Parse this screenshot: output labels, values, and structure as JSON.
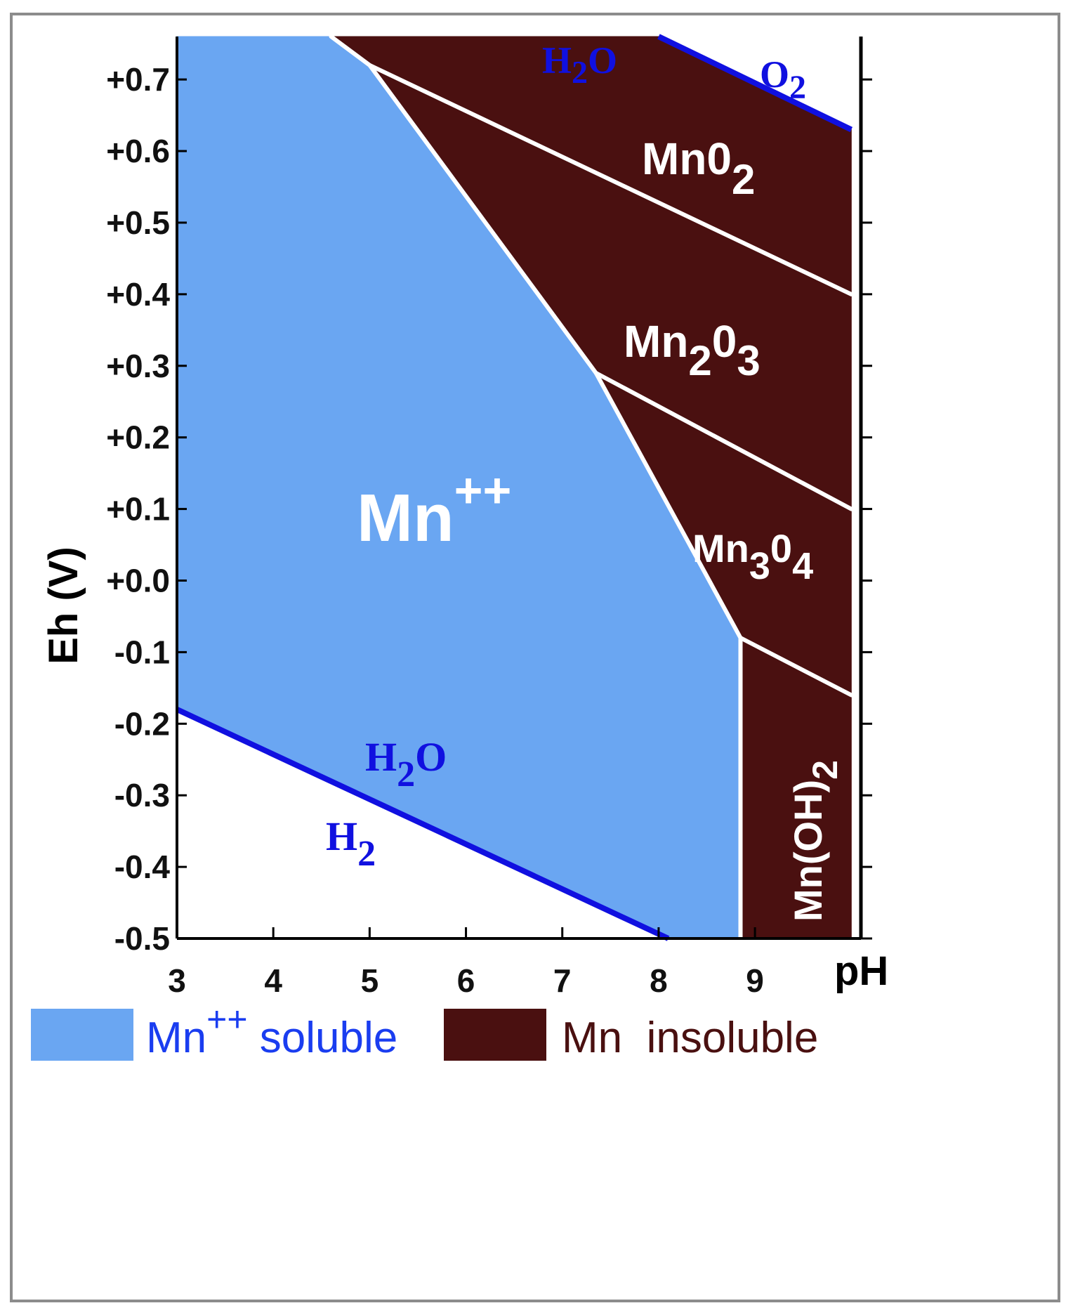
{
  "chart_data": {
    "type": "area",
    "xlabel": "pH",
    "ylabel": "Eh (V)",
    "xlim": [
      3,
      10.1
    ],
    "ylim": [
      -0.5,
      0.76
    ],
    "x_ticks": [
      "3",
      "4",
      "5",
      "6",
      "7",
      "8",
      "9"
    ],
    "y_ticks": [
      "+0.7",
      "+0.6",
      "+0.5",
      "+0.4",
      "+0.3",
      "+0.2",
      "+0.1",
      "+0.0",
      "-0.1",
      "-0.2",
      "-0.3",
      "-0.4",
      "-0.5"
    ],
    "colors": {
      "soluble": "#6aa6f2",
      "insoluble": "#4a1010",
      "water_line": "#1010e0",
      "boundary": "#ffffff"
    },
    "regions": [
      {
        "name": "Mn++",
        "label": "Mn",
        "label_sup": "++",
        "state": "soluble",
        "points": [
          [
            3,
            0.76
          ],
          [
            4.6,
            0.76
          ],
          [
            5.0,
            0.72
          ],
          [
            7.35,
            0.29
          ],
          [
            8.85,
            -0.08
          ],
          [
            8.85,
            -0.5
          ],
          [
            8.1,
            -0.5
          ],
          [
            3,
            -0.18
          ]
        ]
      },
      {
        "name": "MnO2",
        "label": "Mn0",
        "label_sub": "2",
        "state": "insoluble",
        "points": [
          [
            4.6,
            0.76
          ],
          [
            8.0,
            0.76
          ],
          [
            10.0,
            0.63
          ],
          [
            10.0,
            0.4
          ],
          [
            5.0,
            0.72
          ]
        ]
      },
      {
        "name": "Mn2O3",
        "label_parts": [
          "Mn",
          "2",
          "0",
          "3"
        ],
        "state": "insoluble",
        "points": [
          [
            5.0,
            0.72
          ],
          [
            10.0,
            0.4
          ],
          [
            10.0,
            0.1
          ],
          [
            7.35,
            0.29
          ]
        ]
      },
      {
        "name": "Mn3O4",
        "label_parts": [
          "Mn",
          "3",
          "0",
          "4"
        ],
        "state": "insoluble",
        "points": [
          [
            7.35,
            0.29
          ],
          [
            10.0,
            0.1
          ],
          [
            10.0,
            -0.16
          ],
          [
            8.85,
            -0.08
          ]
        ]
      },
      {
        "name": "Mn(OH)2",
        "label": "Mn(OH)",
        "label_sub": "2",
        "state": "insoluble",
        "points": [
          [
            8.85,
            -0.08
          ],
          [
            10.0,
            -0.16
          ],
          [
            10.0,
            -0.5
          ],
          [
            8.85,
            -0.5
          ]
        ]
      }
    ],
    "boundaries": [
      [
        [
          4.6,
          0.76
        ],
        [
          5.0,
          0.72
        ],
        [
          7.35,
          0.29
        ],
        [
          8.85,
          -0.08
        ],
        [
          8.85,
          -0.5
        ]
      ],
      [
        [
          5.0,
          0.72
        ],
        [
          10.0,
          0.4
        ]
      ],
      [
        [
          7.35,
          0.29
        ],
        [
          10.0,
          0.1
        ]
      ],
      [
        [
          8.85,
          -0.08
        ],
        [
          10.0,
          -0.16
        ]
      ]
    ],
    "water_stability": {
      "upper": {
        "points": [
          [
            8.0,
            0.76
          ],
          [
            10.0,
            0.63
          ]
        ],
        "labels": [
          "H2O",
          "O2"
        ]
      },
      "lower": {
        "points": [
          [
            3.0,
            -0.18
          ],
          [
            8.1,
            -0.5
          ]
        ],
        "labels": [
          "H2O",
          "H2"
        ]
      }
    }
  },
  "labels": {
    "upper_h2o": {
      "main": "H",
      "sub": "2",
      "tail": "O"
    },
    "o2": {
      "main": "O",
      "sub": "2"
    },
    "lower_h2o": {
      "main": "H",
      "sub": "2",
      "tail": "O"
    },
    "h2": {
      "main": "H",
      "sub": "2"
    },
    "mn_plus": {
      "main": "Mn",
      "sup": "++"
    },
    "mno2": {
      "main": "Mn0",
      "sub": "2"
    },
    "mn2o3": {
      "main": "Mn",
      "sub1": "2",
      "mid": "0",
      "sub2": "3"
    },
    "mn3o4": {
      "main": "Mn",
      "sub1": "3",
      "mid": "0",
      "sub2": "4"
    },
    "mnoh2": {
      "main": "Mn(OH)",
      "sub": "2"
    }
  },
  "legend": {
    "soluble": {
      "prefix": "Mn",
      "sup": "++",
      "suffix": " soluble",
      "color": "#1a3df0"
    },
    "insoluble": {
      "text": "Mn  insoluble",
      "color": "#4a1010"
    }
  }
}
